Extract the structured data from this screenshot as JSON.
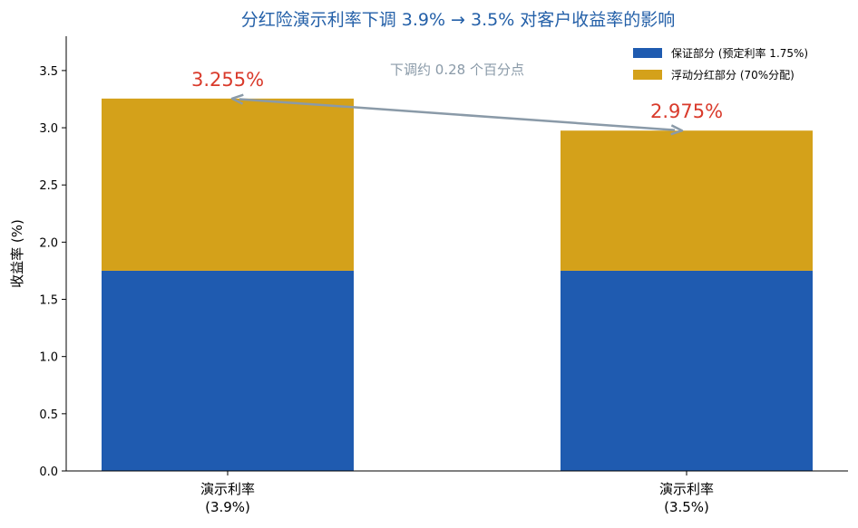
{
  "chart_data": {
    "type": "bar",
    "stacked": true,
    "title": "分红险演示利率下调 3.9% → 3.5% 对客户收益率的影响",
    "ylabel": "收益率 (%)",
    "xlabel": "",
    "ylim": [
      0,
      3.8
    ],
    "yticks": [
      0.0,
      0.5,
      1.0,
      1.5,
      2.0,
      2.5,
      3.0,
      3.5
    ],
    "ytick_labels": [
      "0.0",
      "0.5",
      "1.0",
      "1.5",
      "2.0",
      "2.5",
      "3.0",
      "3.5"
    ],
    "categories": [
      "演示利率\n(3.9%)",
      "演示利率\n(3.5%)"
    ],
    "category_lines": [
      [
        "演示利率",
        "(3.9%)"
      ],
      [
        "演示利率",
        "(3.5%)"
      ]
    ],
    "series": [
      {
        "name": "保证部分 (预定利率 1.75%)",
        "color": "#1f5bb0",
        "values": [
          1.75,
          1.75
        ]
      },
      {
        "name": "浮动分红部分 (70%分配)",
        "color": "#d4a11a",
        "values": [
          1.505,
          1.225
        ]
      }
    ],
    "totals": [
      3.255,
      2.975
    ],
    "total_labels": [
      "3.255%",
      "2.975%"
    ],
    "annotation": "下调约 0.28 个百分点",
    "legend_position": "top-right",
    "grid": false,
    "colors": {
      "title": "#2460a8",
      "value_label": "#d93a2b",
      "annotation": "#8a9aa8",
      "arrow": "#8a9aa8"
    }
  }
}
